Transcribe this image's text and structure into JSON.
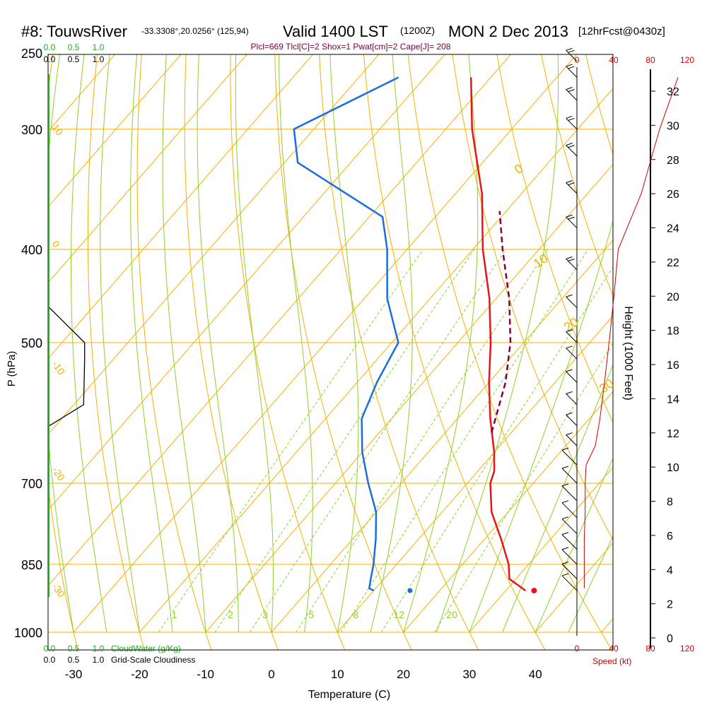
{
  "header": {
    "station_label": "#8: TouwsRiver",
    "coords": "-33.3308°,20.0256° (125,94)",
    "valid": "Valid 1400 LST",
    "utc": "(1200Z)",
    "date": "MON 2 Dec 2013",
    "forecast": "[12hrFcst@0430z]"
  },
  "params_line": "Plcl=669 Tlcl[C]=2 Shox=1 Pwat[cm]=2 Cape[J]= 208",
  "colors": {
    "isobar": "#f5b000",
    "dry_adiabat": "#f5b000",
    "moist_adiabat": "#8fd12a",
    "mixing_ratio": "#8fd12a",
    "temperature": "#e8141a",
    "dewpoint": "#1a6fe0",
    "parcel": "#800040",
    "cloud": "#22aa22",
    "speed": "#cc0000",
    "frame": "#000000"
  },
  "chart_data": {
    "type": "skewt",
    "title": "#8: TouwsRiver Valid 1400 LST MON 2 Dec 2013",
    "xlabel": "Temperature (C)",
    "ylabel": "P (hPa)",
    "y2label": "Height (1000 Feet)",
    "xlim": [
      -35,
      52
    ],
    "ylim_hpa": [
      1000,
      250
    ],
    "x_ticks": [
      "-30",
      "-20",
      "-10",
      "0",
      "10",
      "20",
      "30",
      "40"
    ],
    "x_tick_values": [
      -30,
      -20,
      -10,
      0,
      10,
      20,
      30,
      40
    ],
    "pressure_levels": [
      250,
      300,
      400,
      500,
      700,
      850,
      1000
    ],
    "pressure_labels": [
      "250",
      "300",
      "400",
      "500",
      "700",
      "850",
      "1000"
    ],
    "height_ticks": [
      "0",
      "2",
      "4",
      "6",
      "8",
      "10",
      "12",
      "14",
      "16",
      "18",
      "20",
      "22",
      "24",
      "26",
      "28",
      "30",
      "32"
    ],
    "height_values_kft": [
      0,
      2,
      4,
      6,
      8,
      10,
      12,
      14,
      16,
      18,
      20,
      22,
      24,
      26,
      28,
      30,
      32
    ],
    "speed_axis_labels": [
      "0",
      "40",
      "80",
      "120"
    ],
    "speed_values_kt": [
      0,
      40,
      80,
      120
    ],
    "speed_axis_title": "Speed (kt)",
    "cloud_scale_labels": [
      "0.0",
      "0.5",
      "1.0"
    ],
    "cloudwater_title": "CloudWater (g/Kg)",
    "cloudiness_title": "Grid-Scale Cloudiness",
    "mixing_ratio_labels": [
      "1",
      "2",
      "3",
      "5",
      "8",
      "12",
      "20"
    ],
    "mixing_ratio_values": [
      1,
      2,
      3,
      5,
      8,
      12,
      20
    ],
    "dry_adiabat_labels": [
      "0",
      "10",
      "20",
      "30"
    ],
    "moist_adiabat_labels": [
      "10",
      "0",
      "-10",
      "-20",
      "-30"
    ],
    "temperature_profile": [
      {
        "p": 905,
        "t": 33.0
      },
      {
        "p": 880,
        "t": 29.0
      },
      {
        "p": 850,
        "t": 27.0
      },
      {
        "p": 800,
        "t": 22.5
      },
      {
        "p": 750,
        "t": 17.5
      },
      {
        "p": 700,
        "t": 13.5
      },
      {
        "p": 680,
        "t": 12.5
      },
      {
        "p": 650,
        "t": 10.0
      },
      {
        "p": 600,
        "t": 5.0
      },
      {
        "p": 550,
        "t": 0.0
      },
      {
        "p": 500,
        "t": -5.0
      },
      {
        "p": 450,
        "t": -11.0
      },
      {
        "p": 400,
        "t": -18.5
      },
      {
        "p": 350,
        "t": -26.0
      },
      {
        "p": 300,
        "t": -36.0
      },
      {
        "p": 265,
        "t": -43.0
      }
    ],
    "dewpoint_profile": [
      {
        "p": 905,
        "t": 10.0
      },
      {
        "p": 900,
        "t": 9.0
      },
      {
        "p": 880,
        "t": 8.0
      },
      {
        "p": 850,
        "t": 6.5
      },
      {
        "p": 800,
        "t": 3.5
      },
      {
        "p": 750,
        "t": 0.0
      },
      {
        "p": 700,
        "t": -5.0
      },
      {
        "p": 650,
        "t": -10.0
      },
      {
        "p": 600,
        "t": -14.5
      },
      {
        "p": 550,
        "t": -17.0
      },
      {
        "p": 500,
        "t": -19.0
      },
      {
        "p": 450,
        "t": -26.5
      },
      {
        "p": 400,
        "t": -33.0
      },
      {
        "p": 370,
        "t": -38.0
      },
      {
        "p": 325,
        "t": -58.0
      },
      {
        "p": 300,
        "t": -63.0
      },
      {
        "p": 265,
        "t": -54.0
      }
    ],
    "parcel_profile": [
      {
        "p": 620,
        "t": 7.0
      },
      {
        "p": 550,
        "t": 2.5
      },
      {
        "p": 500,
        "t": -2.0
      },
      {
        "p": 450,
        "t": -8.0
      },
      {
        "p": 400,
        "t": -15.5
      },
      {
        "p": 365,
        "t": -21.0
      }
    ],
    "surface_temperature": {
      "p": 905,
      "t": 34.3
    },
    "surface_dewpoint": {
      "p": 905,
      "t": 15.5
    },
    "wind_speed_profile_kt": [
      {
        "p": 900,
        "kt": 8
      },
      {
        "p": 850,
        "kt": 8
      },
      {
        "p": 800,
        "kt": 8
      },
      {
        "p": 750,
        "kt": 9
      },
      {
        "p": 700,
        "kt": 9
      },
      {
        "p": 670,
        "kt": 10
      },
      {
        "p": 640,
        "kt": 20
      },
      {
        "p": 600,
        "kt": 25
      },
      {
        "p": 550,
        "kt": 30
      },
      {
        "p": 500,
        "kt": 35
      },
      {
        "p": 450,
        "kt": 40
      },
      {
        "p": 400,
        "kt": 45
      },
      {
        "p": 350,
        "kt": 70
      },
      {
        "p": 300,
        "kt": 90
      },
      {
        "p": 265,
        "kt": 110
      }
    ],
    "cloudiness_profile": [
      {
        "p": 610,
        "v": 0.0
      },
      {
        "p": 580,
        "v": 0.7
      },
      {
        "p": 520,
        "v": 0.72
      },
      {
        "p": 500,
        "v": 0.72
      },
      {
        "p": 460,
        "v": 0.0
      }
    ],
    "wind_barb_levels": [
      905,
      880,
      850,
      820,
      790,
      760,
      730,
      700,
      670,
      640,
      610,
      580,
      550,
      520,
      500,
      460,
      420,
      380,
      350,
      320,
      300,
      280,
      265,
      255
    ]
  }
}
